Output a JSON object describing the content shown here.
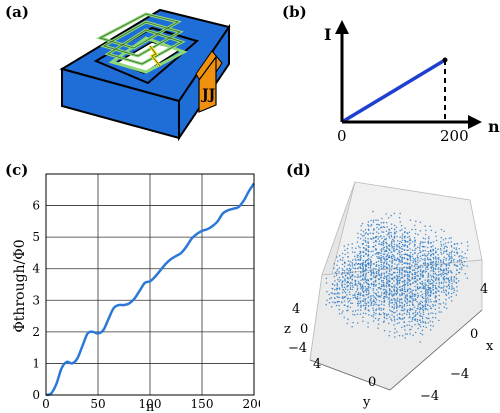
{
  "panel_labels": {
    "a": "(a)",
    "b": "(b)",
    "c": "(c)",
    "d": "(d)"
  },
  "panel_a": {
    "junction_label": "JJ",
    "colors": {
      "block": "#1f6ed8",
      "junction": "#f0900f",
      "coil": "#8fd87a",
      "hole": "#ffffff"
    }
  },
  "chart_data": [
    {
      "type": "line",
      "panel": "b",
      "xlabel": "n",
      "ylabel": "I",
      "x_tick_labels": [
        "0",
        "200"
      ],
      "series": [
        {
          "x": [
            0,
            200
          ],
          "y": [
            0,
            1
          ],
          "color": "#1f3fcf",
          "style": "solid"
        },
        {
          "x": [
            200,
            200
          ],
          "y": [
            1,
            0
          ],
          "color": "#000000",
          "style": "dashed"
        }
      ],
      "xlim": [
        0,
        230
      ],
      "ylim": [
        0,
        1.55
      ]
    },
    {
      "type": "line",
      "panel": "c",
      "xlabel": "n",
      "ylabel": "Φthrough/Φ0",
      "xlim": [
        0,
        200
      ],
      "ylim": [
        0,
        7
      ],
      "xticks": [
        0,
        50,
        100,
        150,
        200
      ],
      "yticks": [
        0,
        1,
        2,
        3,
        4,
        5,
        6
      ],
      "grid": true,
      "series": [
        {
          "color": "#2b78d6",
          "x": [
            0,
            5,
            10,
            15,
            20,
            25,
            30,
            35,
            40,
            45,
            50,
            55,
            60,
            65,
            70,
            75,
            80,
            85,
            90,
            95,
            100,
            105,
            110,
            115,
            120,
            125,
            130,
            135,
            140,
            145,
            150,
            155,
            160,
            165,
            170,
            175,
            180,
            185,
            190,
            195,
            200
          ],
          "y": [
            0.0,
            0.05,
            0.35,
            0.85,
            1.05,
            1.0,
            1.15,
            1.55,
            1.95,
            2.0,
            1.95,
            2.05,
            2.4,
            2.75,
            2.85,
            2.85,
            2.9,
            3.05,
            3.3,
            3.55,
            3.6,
            3.75,
            3.95,
            4.15,
            4.3,
            4.4,
            4.5,
            4.7,
            4.95,
            5.1,
            5.2,
            5.25,
            5.35,
            5.5,
            5.75,
            5.85,
            5.9,
            5.95,
            6.15,
            6.45,
            6.7
          ]
        }
      ]
    },
    {
      "type": "scatter",
      "panel": "d",
      "projection": "3d",
      "axis_labels": {
        "x": "x",
        "y": "y",
        "z": "z"
      },
      "x_tick_labels": [
        "4",
        "0",
        "−4"
      ],
      "y_tick_labels": [
        "4",
        "0",
        "−4"
      ],
      "z_tick_labels": [
        "4",
        "0",
        "−4"
      ],
      "color": "#2d7bc4"
    }
  ]
}
